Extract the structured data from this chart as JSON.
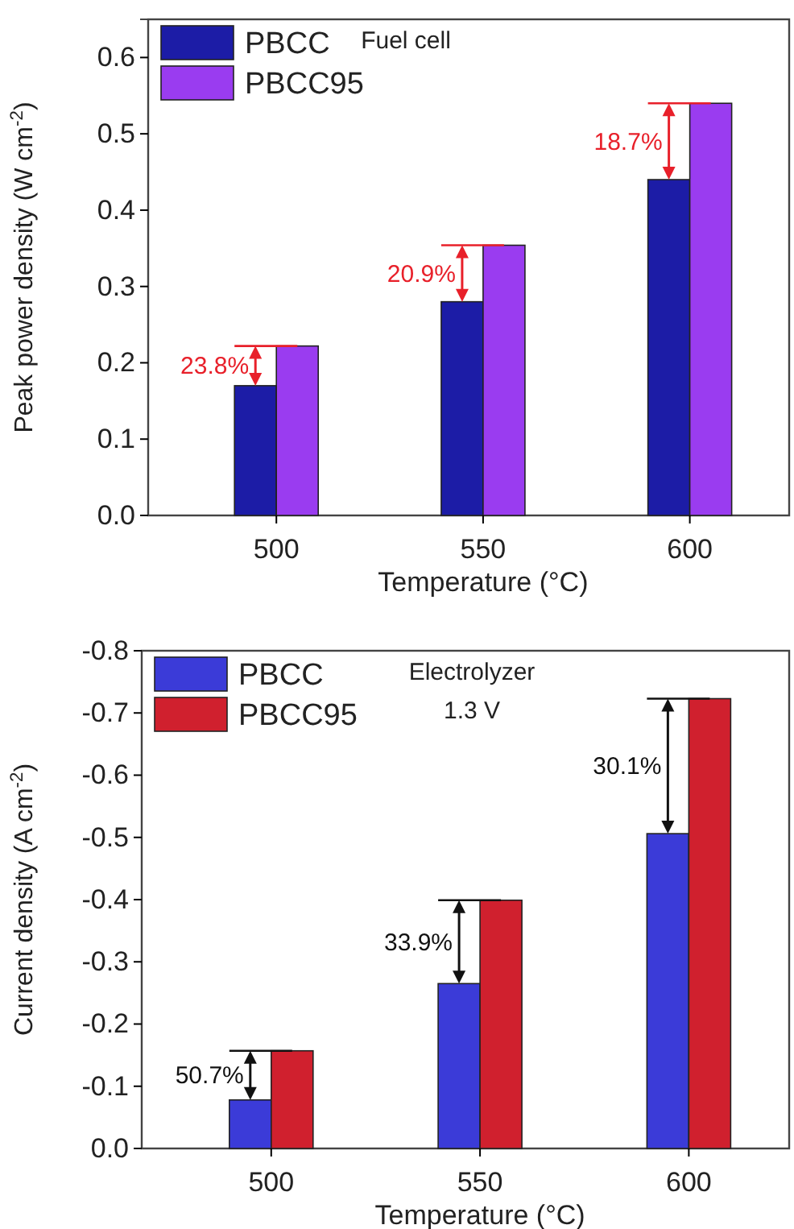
{
  "chart_data": [
    {
      "type": "bar",
      "xlabel": "Temperature (°C)",
      "ylabel": "Peak power density (W cm$^{-2}$)",
      "categories": [
        "500",
        "550",
        "600"
      ],
      "series": [
        {
          "name": "PBCC",
          "color": "#1c1ca6",
          "values": [
            0.17,
            0.28,
            0.44
          ]
        },
        {
          "name": "PBCC95",
          "color": "#9a3cf0",
          "values": [
            0.222,
            0.354,
            0.54
          ]
        }
      ],
      "ylim": [
        0,
        0.65
      ],
      "yticks": [
        {
          "value": 0,
          "label": "0.0"
        },
        0.1,
        0.2,
        0.3,
        0.4,
        0.5,
        0.6
      ],
      "legend": "top left",
      "annotations": [
        "Fuel cell",
        {
          "text": "23.8%",
          "x": "500",
          "y": 0.222
        },
        {
          "text": "20.9%",
          "x": "550",
          "y": 0.354
        },
        {
          "text": "18.7%",
          "x": "600",
          "y": 0.54
        }
      ]
    },
    {
      "type": "bar",
      "xlabel": "Temperature (°C)",
      "ylabel": "Current density (A cm$^{-2}$)",
      "categories": [
        "500",
        "550",
        "600"
      ],
      "series": [
        {
          "name": "PBCC",
          "color": "#3b3bd8",
          "values": [
            -0.078,
            -0.265,
            -0.506
          ]
        },
        {
          "name": "PBCC95",
          "color": "#d0202e",
          "values": [
            -0.157,
            -0.399,
            -0.723
          ]
        }
      ],
      "ylim": [
        0,
        -0.8
      ],
      "yticks": [
        {
          "value": 0,
          "label": "0.0"
        },
        -0.1,
        -0.2,
        -0.3,
        -0.4,
        -0.5,
        -0.6,
        -0.7,
        -0.8
      ],
      "legend": "top left",
      "annotations": [
        "Electrolyzer",
        "1.3 V",
        {
          "text": "50.7%",
          "x": "500",
          "y": -0.157
        },
        {
          "text": "33.9%",
          "x": "550",
          "y": -0.399
        },
        {
          "text": "30.1%",
          "x": "600",
          "y": -0.723
        }
      ]
    }
  ]
}
